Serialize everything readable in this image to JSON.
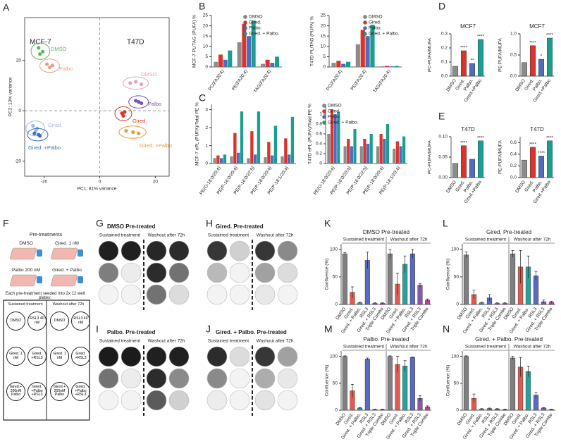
{
  "panel_labels": [
    "A",
    "B",
    "C",
    "D",
    "E",
    "F",
    "G",
    "H",
    "I",
    "J",
    "K",
    "L",
    "M",
    "N"
  ],
  "chart_data": [
    {
      "type": "scatter",
      "xlabel": "PC1: 81% variance",
      "ylabel": "PC2: 13% variance",
      "xlim": [
        -27,
        25
      ],
      "ylim": [
        -26,
        37
      ],
      "xticks": [
        -20,
        0,
        20
      ],
      "yticks": [
        -20,
        0,
        20
      ],
      "annotations": [
        "MCF-7",
        "T47D"
      ],
      "series": [
        {
          "name": "DMSO",
          "color": "#5cb85c",
          "x": [
            -22,
            -20.5,
            -21.5
          ],
          "y": [
            25,
            23.5,
            22.5
          ]
        },
        {
          "name": "Palbo",
          "color": "#e8a08a",
          "x": [
            -19,
            -17,
            -18
          ],
          "y": [
            18.5,
            18,
            17.2
          ]
        },
        {
          "name": "Gired.",
          "color": "#9ab8e0",
          "x": [
            -24,
            -22.5,
            -23
          ],
          "y": [
            -6,
            -7,
            -8
          ]
        },
        {
          "name": "Gired. +Palbo",
          "color": "#3a6fb5",
          "x": [
            -23.5,
            -22,
            -21.5
          ],
          "y": [
            -9,
            -9.5,
            -10
          ]
        },
        {
          "name": "DMSO",
          "color": "#e6a0c0",
          "x": [
            11,
            13,
            15
          ],
          "y": [
            11,
            11.5,
            10.5
          ]
        },
        {
          "name": "Palbo",
          "color": "#7a4fc0",
          "x": [
            13,
            14,
            15
          ],
          "y": [
            4,
            3.5,
            3
          ]
        },
        {
          "name": "Gired.",
          "color": "#d9342b",
          "x": [
            8,
            8.5,
            9
          ],
          "y": [
            -1,
            -2,
            -0.5
          ]
        },
        {
          "name": "Gired. +Palbo",
          "color": "#f0963c",
          "x": [
            9.5,
            12,
            14
          ],
          "y": [
            -8,
            -8.5,
            -9
          ]
        }
      ]
    },
    {
      "type": "bar",
      "ylabel": "MCF-7 PL/TAG (PUFA) %",
      "ylim": [
        0,
        25
      ],
      "yticks": [
        0,
        5,
        10,
        15,
        20,
        25
      ],
      "legend": "upper right",
      "categories": [
        "PC(FA20:4)",
        "PE(FA20:4)",
        "TAG(FA20:4)"
      ],
      "series": [
        {
          "name": "DMSO",
          "color": "#8c8c8c",
          "values": [
            2.5,
            12,
            1.5
          ]
        },
        {
          "name": "Gired.",
          "color": "#d9342b",
          "values": [
            6,
            21,
            3.5
          ]
        },
        {
          "name": "Palbo.",
          "color": "#4f6dbd",
          "values": [
            3.5,
            15,
            2
          ]
        },
        {
          "name": "Gired. + Palbo.",
          "color": "#1b9e8f",
          "values": [
            8,
            22.5,
            5
          ]
        }
      ]
    },
    {
      "type": "bar",
      "ylabel": "T47D PL/TAG (PUFA) %",
      "ylim": [
        0,
        25
      ],
      "yticks": [
        0,
        5,
        10,
        15,
        20,
        25
      ],
      "legend": "upper right",
      "categories": [
        "PC(FA20:4)",
        "PE(FA20:4)",
        "TAG(FA20:4)"
      ],
      "series": [
        {
          "name": "DMSO",
          "color": "#8c8c8c",
          "values": [
            2,
            11,
            0.3
          ]
        },
        {
          "name": "Gired.",
          "color": "#d9342b",
          "values": [
            3,
            18,
            0.5
          ]
        },
        {
          "name": "Palbo.",
          "color": "#4f6dbd",
          "values": [
            1.5,
            15,
            0.3
          ]
        },
        {
          "name": "Gired. + Palbo.",
          "color": "#1b9e8f",
          "values": [
            2.5,
            20.5,
            0.5
          ]
        }
      ]
    },
    {
      "type": "bar",
      "ylabel": "MCF-7 ePL (PUFA)/Total PE %",
      "ylim": [
        0,
        3.3
      ],
      "yticks": [
        0,
        1,
        2,
        3
      ],
      "categories": [
        "PE(O-18:0/20:4)",
        "PE(P-16:0/20:4)",
        "PE(P-16:0/22:5)",
        "PE(P-18:0/20:4)",
        "PE(P-18:1/20:4)"
      ],
      "series": [
        {
          "color": "#8c8c8c",
          "values": [
            0.3,
            0.4,
            0.3,
            0.35,
            0.4
          ]
        },
        {
          "color": "#d9342b",
          "values": [
            0.45,
            1.7,
            1.8,
            1.2,
            1.4
          ]
        },
        {
          "color": "#4f6dbd",
          "values": [
            0.3,
            0.6,
            0.5,
            0.45,
            0.5
          ]
        },
        {
          "color": "#1b9e8f",
          "values": [
            0.5,
            2.9,
            2.9,
            2.1,
            2.6
          ]
        }
      ]
    },
    {
      "type": "bar",
      "ylabel": "T47D ePL (PUFA)/Total PE %",
      "ylim": [
        0,
        1.2
      ],
      "yticks": [
        0,
        0.2,
        0.4,
        0.6,
        0.8,
        1
      ],
      "legend": "upper right",
      "categories": [
        "PE(O-18:0/20:4)",
        "PE(P-16:0/20:4)",
        "PE(P-16:0/22:5)",
        "PE(P-18:0/20:4)",
        "PE(P-18:1/20:4)"
      ],
      "series": [
        {
          "name": "DMSO",
          "color": "#8c8c8c",
          "values": [
            0.6,
            0.35,
            0.35,
            0.35,
            0.3
          ]
        },
        {
          "name": "Gired.",
          "color": "#d9342b",
          "values": [
            1.1,
            0.5,
            0.5,
            0.6,
            0.45
          ]
        },
        {
          "name": "Palbo.",
          "color": "#4f6dbd",
          "values": [
            1,
            0.35,
            0.4,
            0.5,
            0.35
          ]
        },
        {
          "name": "Gired. + Palbo.",
          "color": "#1b9e8f",
          "values": [
            1.05,
            0.7,
            0.6,
            0.8,
            0.55
          ]
        }
      ]
    },
    {
      "type": "bar",
      "title": "MCF7",
      "ylabel": "PC-PUFA/MUFA",
      "ylim": [
        0,
        0.3
      ],
      "yticks": [
        {
          "value": 0,
          "label": "0.0"
        },
        0.1,
        0.2,
        0.3
      ],
      "categories": [
        "DMSO",
        "Gired.",
        "Palbo.",
        "Gired.+Palbo"
      ],
      "colors": [
        "#8c8c8c",
        "#d9342b",
        "#4f6dbd",
        "#1b9e8f"
      ],
      "values": [
        0.07,
        0.18,
        0.09,
        0.26
      ],
      "significance": [
        null,
        "****",
        "**",
        "****"
      ]
    },
    {
      "type": "bar",
      "title": "MCF7",
      "ylabel": "PE-PUFA/MUFA",
      "ylim": [
        0,
        1.0
      ],
      "yticks": [
        {
          "value": 0,
          "label": "0.0"
        },
        0.5,
        {
          "value": 1,
          "label": "1.0"
        }
      ],
      "categories": [
        "DMSO",
        "Gired.",
        "Palbo.",
        "Gired.+Palbo"
      ],
      "colors": [
        "#8c8c8c",
        "#d9342b",
        "#4f6dbd",
        "#1b9e8f"
      ],
      "values": [
        0.32,
        0.72,
        0.4,
        0.9
      ],
      "significance": [
        null,
        "****",
        "*",
        "****"
      ]
    },
    {
      "type": "bar",
      "title": "T47D",
      "ylabel": "PC-PUFA/MUFA",
      "ylim": [
        0,
        0.1
      ],
      "yticks": [
        {
          "value": 0,
          "label": "0.00"
        },
        0.05,
        {
          "value": 0.1,
          "label": "0.10"
        }
      ],
      "categories": [
        "DMSO",
        "Gired.",
        "Palbo.",
        "Gired.+Palbo"
      ],
      "colors": [
        "#8c8c8c",
        "#d9342b",
        "#4f6dbd",
        "#1b9e8f"
      ],
      "values": [
        0.035,
        0.078,
        0.045,
        0.09
      ],
      "significance": [
        null,
        "****",
        null,
        "****"
      ]
    },
    {
      "type": "bar",
      "title": "T47D",
      "ylabel": "PE-PUFA/MUFA",
      "ylim": [
        0,
        0.7
      ],
      "yticks": [
        {
          "value": 0,
          "label": "0.0"
        },
        0.2,
        0.4,
        0.6
      ],
      "categories": [
        "DMSO",
        "Gired.",
        "Palbo.",
        "Gired.+Palbo"
      ],
      "colors": [
        "#8c8c8c",
        "#d9342b",
        "#4f6dbd",
        "#1b9e8f"
      ],
      "values": [
        0.3,
        0.52,
        0.37,
        0.63
      ],
      "significance": [
        null,
        "****",
        "****",
        "****"
      ]
    },
    {
      "type": "bar",
      "title": "DMSO Pre-treated",
      "ylabel": "Confluence (%)",
      "ylim": [
        0,
        110
      ],
      "yticks": [
        0,
        50,
        100
      ],
      "groups": [
        "Sustained treatment",
        "Washout after 72h"
      ],
      "categories": [
        "DMSO",
        "Gired.",
        "Gired. + Palbo.",
        "RSL3",
        "Gired. + RSL3",
        "Triple Combo",
        "DMSO",
        "Gired.",
        "Gired. + Palbo.",
        "RSL3",
        "Gired. + RSL3",
        "Triple Combo"
      ],
      "colors": [
        "#7f7f7f",
        "#e05a4f",
        "#2aa198",
        "#5b6ac0",
        "#8a56a8",
        "#c2409a",
        "#7f7f7f",
        "#e05a4f",
        "#2aa198",
        "#5b6ac0",
        "#8a56a8",
        "#c2409a"
      ],
      "values": [
        92,
        22,
        3,
        80,
        2,
        2,
        92,
        37,
        73,
        92,
        35,
        8
      ],
      "errors": [
        2,
        10,
        1,
        15,
        1,
        1,
        8,
        20,
        15,
        8,
        3,
        2
      ]
    },
    {
      "type": "bar",
      "title": "Gired. Pre-treated",
      "ylabel": "Confluence (%)",
      "ylim": [
        0,
        110
      ],
      "yticks": [
        0,
        50,
        100
      ],
      "groups": [
        "Sustained treatment",
        "Washout after 72h"
      ],
      "categories": [
        "DMSO",
        "Gired.",
        "Gired. + Palbo.",
        "RSL3",
        "Gired. + RSL3",
        "Triple Combo",
        "DMSO",
        "Gired.",
        "Gired. + Palbo.",
        "RSL3",
        "Gired. + RSL3",
        "Triple Combo"
      ],
      "colors": [
        "#7f7f7f",
        "#e05a4f",
        "#2aa198",
        "#5b6ac0",
        "#8a56a8",
        "#c2409a",
        "#7f7f7f",
        "#e05a4f",
        "#2aa198",
        "#5b6ac0",
        "#8a56a8",
        "#c2409a"
      ],
      "values": [
        90,
        18,
        3,
        12,
        2,
        2,
        92,
        68,
        68,
        52,
        5,
        4
      ],
      "errors": [
        5,
        8,
        1,
        6,
        1,
        1,
        6,
        30,
        20,
        8,
        3,
        2
      ]
    },
    {
      "type": "bar",
      "title": "Palbo. Pre-treated",
      "ylabel": "Confluence (%)",
      "ylim": [
        0,
        110
      ],
      "yticks": [
        0,
        50,
        100
      ],
      "groups": [
        "Sustained treatment",
        "Washout after 72h"
      ],
      "categories": [
        "DMSO",
        "Gired.",
        "Gired. + Palbo.",
        "RSL3",
        "Gired. + RSL3",
        "Triple Combo",
        "DMSO",
        "Gired.",
        "Gired. + Palbo.",
        "RSL3",
        "Gired. + RSL3",
        "Triple Combo"
      ],
      "colors": [
        "#7f7f7f",
        "#e05a4f",
        "#2aa198",
        "#5b6ac0",
        "#8a56a8",
        "#c2409a",
        "#7f7f7f",
        "#e05a4f",
        "#2aa198",
        "#5b6ac0",
        "#8a56a8",
        "#c2409a"
      ],
      "values": [
        100,
        36,
        4,
        95,
        1,
        1,
        100,
        85,
        82,
        98,
        22,
        6
      ],
      "errors": [
        1,
        12,
        1,
        2,
        1,
        1,
        1,
        15,
        10,
        1,
        5,
        2
      ]
    },
    {
      "type": "bar",
      "title": "Gired. + Palbo. Pre-treated",
      "ylabel": "Confluence (%)",
      "ylim": [
        0,
        110
      ],
      "yticks": [
        0,
        50,
        100
      ],
      "groups": [
        "Sustained treatment",
        "Washout after 72h"
      ],
      "categories": [
        "DMSO",
        "Gired.",
        "Gired. + Palbo.",
        "RSL3",
        "Gired. + RSL3",
        "Triple Combo",
        "DMSO",
        "Gired.",
        "Gired. + Palbo.",
        "RSL3",
        "Gired. + RSL3",
        "Triple Combo"
      ],
      "colors": [
        "#7f7f7f",
        "#e05a4f",
        "#2aa198",
        "#5b6ac0",
        "#8a56a8",
        "#c2409a",
        "#7f7f7f",
        "#e05a4f",
        "#2aa198",
        "#5b6ac0",
        "#8a56a8",
        "#c2409a"
      ],
      "values": [
        100,
        22,
        2,
        3,
        2,
        1,
        97,
        80,
        72,
        28,
        4,
        1
      ],
      "errors": [
        1,
        8,
        1,
        1,
        1,
        1,
        3,
        18,
        10,
        5,
        1,
        1
      ]
    }
  ],
  "schematic": {
    "title": "Pre-treatments",
    "flasks": [
      "DMSO",
      "Gired. 1 nM",
      "Palbo 200 nM",
      "Gired. + Palbo"
    ],
    "caption": "Each pre-treatment seeded into 2x 12 well plates:",
    "headers": [
      "Sustained treatment",
      "Washout after 72h"
    ],
    "wells": [
      "DMSO",
      "RSL3 40 nM",
      "DMSO",
      "RSL3 40 nM",
      "Gired. 1 nM",
      "Gired. +RSL3",
      "Gired. 1 nM",
      "Gired. +RSL3",
      "Gired.+ 200nM Palbo",
      "Gired. +Palbo +RSL3",
      "Gired.+ 200nM Palbo",
      "Gired. +Palbo +RSL3"
    ]
  },
  "well_panels": [
    {
      "title": "DMSO Pre-treated",
      "headers": [
        "Sustained treatment",
        "Washout after 72h"
      ]
    },
    {
      "title": "Gired. Pre-treated",
      "headers": [
        "Sustained treatment",
        "Washout after 72h"
      ]
    },
    {
      "title": "Palbo. Pre-treated",
      "headers": [
        "Sustained treatment",
        "Washout after 72h"
      ]
    },
    {
      "title": "Gired. + Palbo. Pre-treated",
      "headers": [
        "Sustained treatment",
        "Washout after 72h"
      ]
    }
  ]
}
